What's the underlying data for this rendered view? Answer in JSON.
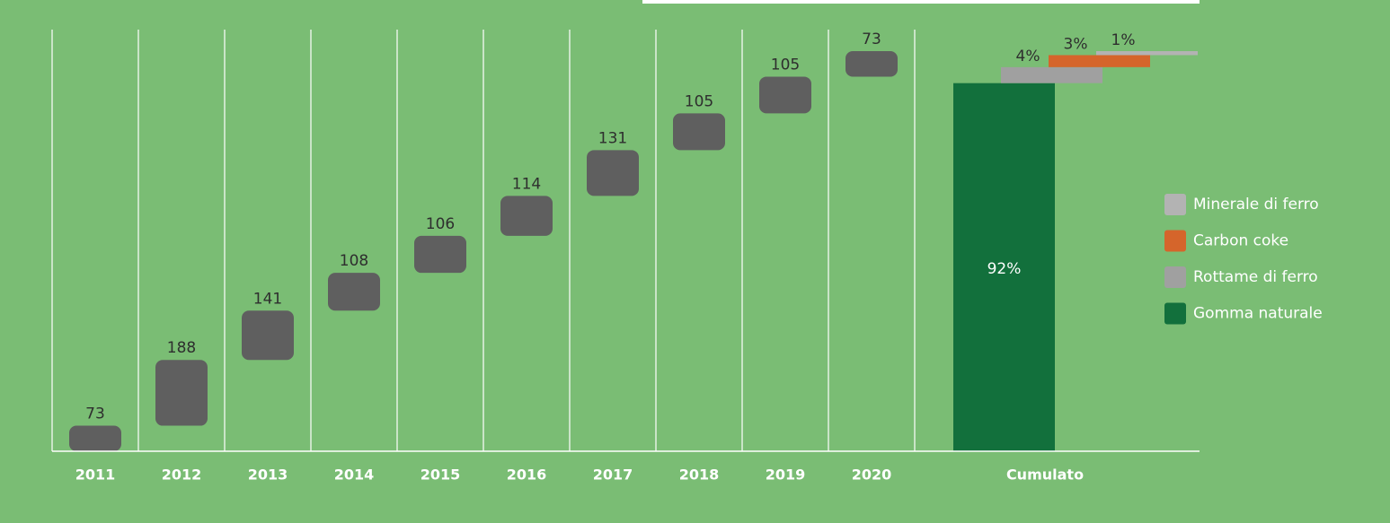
{
  "chart_data": {
    "type": "waterfall",
    "categories": [
      "2011",
      "2012",
      "2013",
      "2014",
      "2015",
      "2016",
      "2017",
      "2018",
      "2019",
      "2020"
    ],
    "values": [
      73,
      188,
      141,
      108,
      106,
      114,
      131,
      105,
      105,
      73
    ],
    "color": "#5f5f5f",
    "cumulative": {
      "category": "Cumulato",
      "series": [
        {
          "name": "Gomma naturale",
          "color": "#12703c",
          "values": [
            92
          ],
          "value_labels": [
            "92%"
          ]
        },
        {
          "name": "Rottame di ferro",
          "color": "#a0a0a0",
          "values": [
            4
          ],
          "value_labels": [
            "4%"
          ]
        },
        {
          "name": "Carbon coke",
          "color": "#d5652b",
          "values": [
            3
          ],
          "value_labels": [
            "3%"
          ]
        },
        {
          "name": "Minerale di ferro",
          "color": "#b3b3b3",
          "values": [
            1
          ],
          "value_labels": [
            "1%"
          ]
        }
      ]
    },
    "legend": "right"
  }
}
